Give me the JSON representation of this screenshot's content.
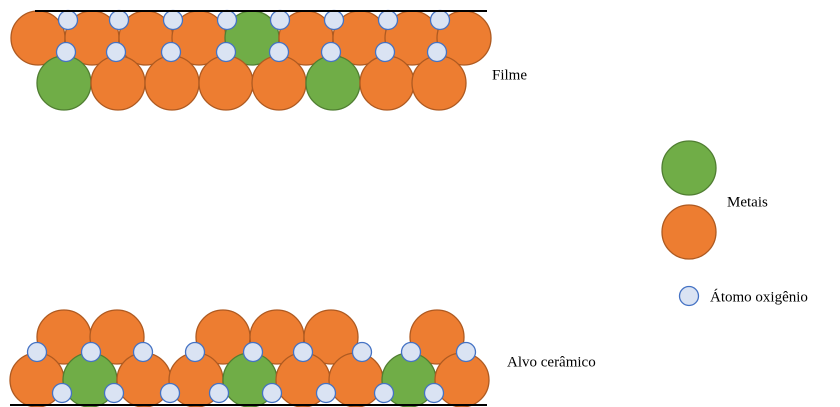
{
  "labels": {
    "film": "Filme",
    "metals": "Metais",
    "oxygen": "Átomo oxigênio",
    "target": "Alvo cerâmico"
  }
}
